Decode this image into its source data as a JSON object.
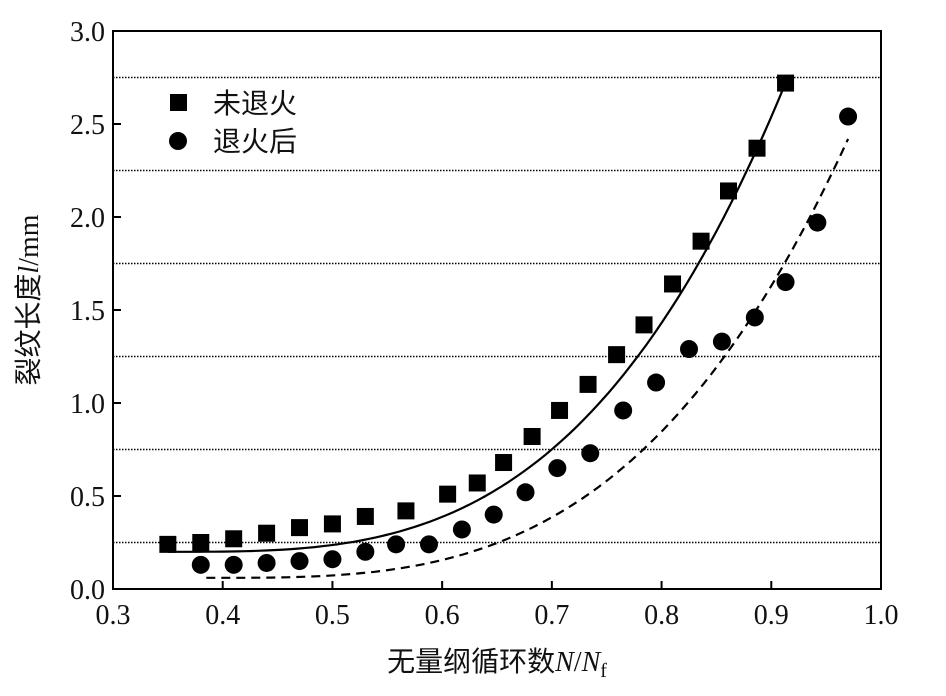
{
  "chart_data": {
    "type": "scatter",
    "title": "",
    "xlabel": {
      "prefix": "无量纲循环数",
      "var": "N",
      "slash": "/",
      "var2": "N",
      "sub": "f"
    },
    "ylabel": {
      "prefix": "裂纹长度",
      "var": "l",
      "unit": "/mm"
    },
    "xlim": [
      0.3,
      1.0
    ],
    "ylim": [
      0.0,
      3.0
    ],
    "x_ticks": [
      "0.3",
      "0.4",
      "0.5",
      "0.6",
      "0.7",
      "0.8",
      "0.9",
      "1.0"
    ],
    "y_ticks": [
      "0.0",
      "0.5",
      "1.0",
      "1.5",
      "2.0",
      "2.5",
      "3.0"
    ],
    "reference_lines_y": [
      0.25,
      0.75,
      1.25,
      1.75,
      2.25,
      2.75
    ],
    "legend_position": "top-left",
    "series": [
      {
        "name": "未退火",
        "marker": "square",
        "fit_line": "solid",
        "color": "#000000",
        "x": [
          0.35,
          0.38,
          0.41,
          0.44,
          0.47,
          0.5,
          0.53,
          0.567,
          0.605,
          0.632,
          0.656,
          0.682,
          0.707,
          0.733,
          0.759,
          0.784,
          0.81,
          0.836,
          0.861,
          0.887,
          0.913
        ],
        "y": [
          0.24,
          0.25,
          0.27,
          0.3,
          0.33,
          0.35,
          0.39,
          0.42,
          0.51,
          0.57,
          0.68,
          0.82,
          0.96,
          1.1,
          1.26,
          1.42,
          1.64,
          1.87,
          2.14,
          2.37,
          2.72
        ],
        "fit": {
          "x_start": 0.35,
          "x_end": 0.913,
          "y_start": 0.2,
          "y_end": 2.72
        }
      },
      {
        "name": "退火后",
        "marker": "circle",
        "fit_line": "dashed",
        "color": "#000000",
        "x": [
          0.38,
          0.41,
          0.44,
          0.47,
          0.5,
          0.53,
          0.558,
          0.588,
          0.618,
          0.647,
          0.676,
          0.705,
          0.735,
          0.765,
          0.795,
          0.825,
          0.855,
          0.885,
          0.913,
          0.942,
          0.97
        ],
        "y": [
          0.13,
          0.13,
          0.14,
          0.15,
          0.16,
          0.2,
          0.24,
          0.24,
          0.32,
          0.4,
          0.52,
          0.65,
          0.73,
          0.96,
          1.11,
          1.29,
          1.33,
          1.46,
          1.65,
          1.97,
          2.54
        ],
        "fit": {
          "x_start": 0.385,
          "x_end": 0.97,
          "y_start": 0.06,
          "y_end": 2.42
        }
      }
    ]
  }
}
